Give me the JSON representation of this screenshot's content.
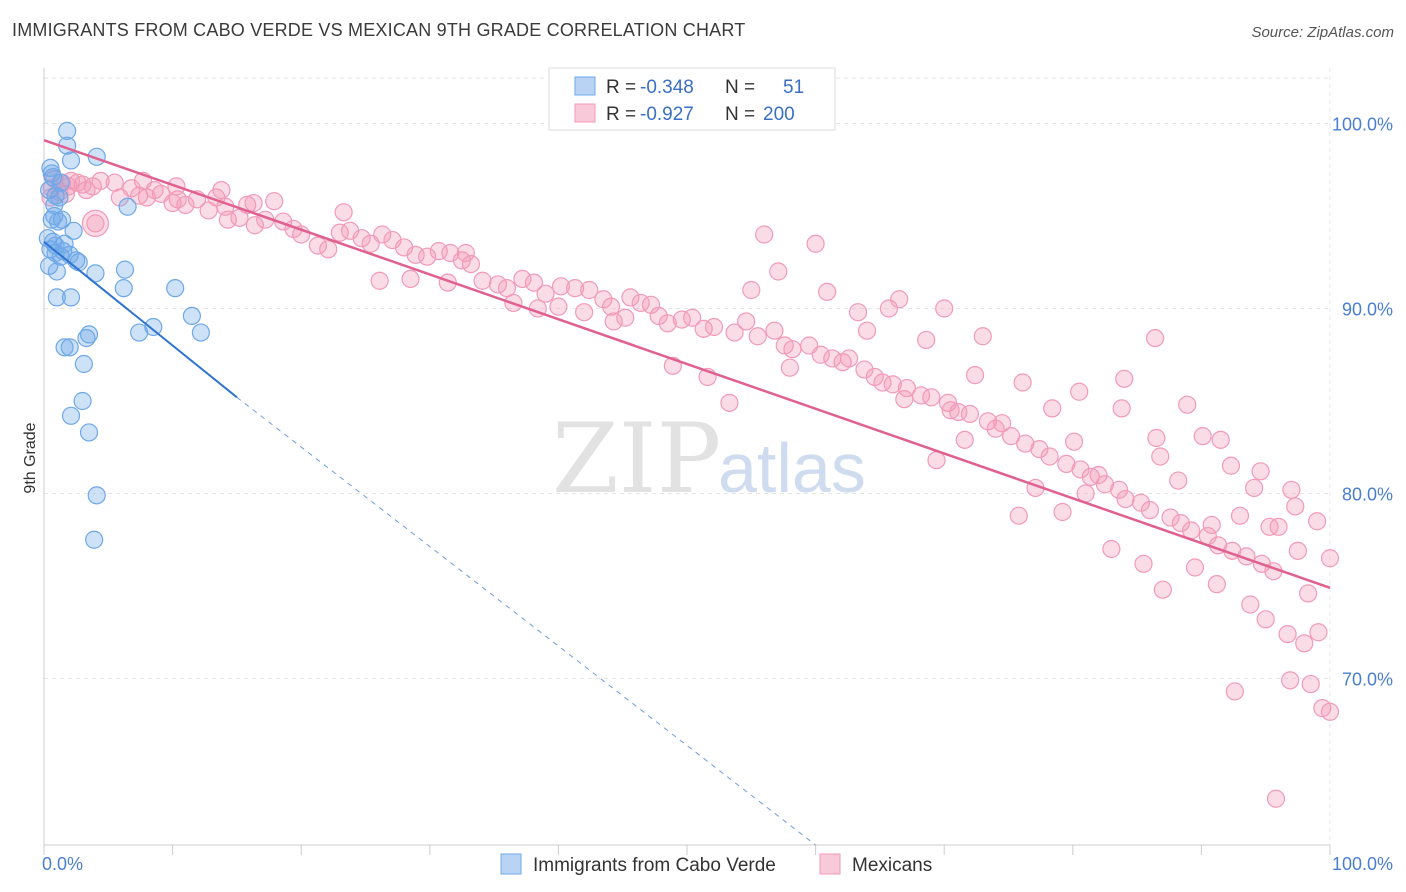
{
  "title": "IMMIGRANTS FROM CABO VERDE VS MEXICAN 9TH GRADE CORRELATION CHART",
  "source": "Source: ZipAtlas.com",
  "watermark": {
    "zip": "ZIP",
    "atlas": "atlas"
  },
  "colors": {
    "blue": "#6fa8e8",
    "blue_line": "#2f74d0",
    "pink": "#f29ab8",
    "pink_line": "#e0608f",
    "grid": "#e6e6e6"
  },
  "chart_data": {
    "type": "scatter",
    "title": "IMMIGRANTS FROM CABO VERDE VS MEXICAN 9TH GRADE CORRELATION CHART",
    "xlabel": "",
    "ylabel": "9th Grade",
    "xlim": [
      0,
      100
    ],
    "ylim": [
      61,
      103
    ],
    "x_tick_labels": [
      "0.0%",
      "100.0%"
    ],
    "y_ticks": [
      70,
      80,
      90,
      100
    ],
    "y_tick_labels": [
      "70.0%",
      "80.0%",
      "90.0%",
      "100.0%"
    ],
    "legend": {
      "entries": [
        {
          "name": "Immigrants from Cabo Verde",
          "r_label": "R =",
          "r": "-0.348",
          "n_label": "N =",
          "n": "51"
        },
        {
          "name": "Mexicans",
          "r_label": "R =",
          "r": "-0.927",
          "n_label": "N = ",
          "n": "200"
        }
      ]
    },
    "series": [
      {
        "name": "Immigrants from Cabo Verde",
        "color": "#6fa8e8",
        "trend": {
          "x0": 0,
          "y0": 93.6,
          "x1": 15,
          "y1": 85.2,
          "dash_to_x": 60,
          "dash_to_y": 61
        },
        "points": [
          [
            1.8,
            99.6
          ],
          [
            1.8,
            98.8
          ],
          [
            2.1,
            98.0
          ],
          [
            4.1,
            98.2
          ],
          [
            0.5,
            97.6
          ],
          [
            0.7,
            97.1
          ],
          [
            1.3,
            96.8
          ],
          [
            0.4,
            96.4
          ],
          [
            0.9,
            96.1
          ],
          [
            0.8,
            95.6
          ],
          [
            6.5,
            95.5
          ],
          [
            0.6,
            94.8
          ],
          [
            1.4,
            94.8
          ],
          [
            1.1,
            94.7
          ],
          [
            2.3,
            94.2
          ],
          [
            0.3,
            93.8
          ],
          [
            0.7,
            93.6
          ],
          [
            1.6,
            93.5
          ],
          [
            0.5,
            93.2
          ],
          [
            0.9,
            93.0
          ],
          [
            2.0,
            92.9
          ],
          [
            1.3,
            92.8
          ],
          [
            2.5,
            92.6
          ],
          [
            2.7,
            92.5
          ],
          [
            0.4,
            92.3
          ],
          [
            1.0,
            92.0
          ],
          [
            6.3,
            92.1
          ],
          [
            4.0,
            91.9
          ],
          [
            6.2,
            91.1
          ],
          [
            10.2,
            91.1
          ],
          [
            1.0,
            90.6
          ],
          [
            2.1,
            90.6
          ],
          [
            11.5,
            89.6
          ],
          [
            8.5,
            89.0
          ],
          [
            7.4,
            88.7
          ],
          [
            12.2,
            88.7
          ],
          [
            3.5,
            88.6
          ],
          [
            3.3,
            88.4
          ],
          [
            1.6,
            87.9
          ],
          [
            2.0,
            87.9
          ],
          [
            3.1,
            87.0
          ],
          [
            3.0,
            85.0
          ],
          [
            2.1,
            84.2
          ],
          [
            3.5,
            83.3
          ],
          [
            4.1,
            79.9
          ],
          [
            3.9,
            77.5
          ],
          [
            0.6,
            97.3
          ],
          [
            1.2,
            96.0
          ],
          [
            0.9,
            93.4
          ],
          [
            1.5,
            93.1
          ],
          [
            0.8,
            95.0
          ]
        ]
      },
      {
        "name": "Mexicans",
        "color": "#f29ab8",
        "trend": {
          "x0": 0,
          "y0": 99.1,
          "x1": 100,
          "y1": 74.9
        },
        "points": [
          [
            0.8,
            97.0
          ],
          [
            1.4,
            96.8
          ],
          [
            2.1,
            96.9
          ],
          [
            3.0,
            96.7
          ],
          [
            3.8,
            96.6
          ],
          [
            0.6,
            96.5
          ],
          [
            1.2,
            96.3
          ],
          [
            1.9,
            96.6
          ],
          [
            2.6,
            96.8
          ],
          [
            4.4,
            96.9
          ],
          [
            5.5,
            96.8
          ],
          [
            6.8,
            96.5
          ],
          [
            7.7,
            96.9
          ],
          [
            8.6,
            96.4
          ],
          [
            0.5,
            96.0
          ],
          [
            1.7,
            96.2
          ],
          [
            3.3,
            96.4
          ],
          [
            5.9,
            96.0
          ],
          [
            7.4,
            96.1
          ],
          [
            9.1,
            96.2
          ],
          [
            10.4,
            95.9
          ],
          [
            11.9,
            95.9
          ],
          [
            13.4,
            96.0
          ],
          [
            14.1,
            95.5
          ],
          [
            15.8,
            95.6
          ],
          [
            16.3,
            95.7
          ],
          [
            17.9,
            95.8
          ],
          [
            8.0,
            96.0
          ],
          [
            10.3,
            96.6
          ],
          [
            13.8,
            96.4
          ],
          [
            4.0,
            94.6
          ],
          [
            10.0,
            95.7
          ],
          [
            11.0,
            95.6
          ],
          [
            12.8,
            95.3
          ],
          [
            14.3,
            94.8
          ],
          [
            15.2,
            94.9
          ],
          [
            16.4,
            94.5
          ],
          [
            17.2,
            94.8
          ],
          [
            18.6,
            94.7
          ],
          [
            19.4,
            94.3
          ],
          [
            20.0,
            94.0
          ],
          [
            21.3,
            93.4
          ],
          [
            22.1,
            93.2
          ],
          [
            23.0,
            94.1
          ],
          [
            23.8,
            94.2
          ],
          [
            24.7,
            93.8
          ],
          [
            25.4,
            93.5
          ],
          [
            26.3,
            94.0
          ],
          [
            27.1,
            93.7
          ],
          [
            28.0,
            93.3
          ],
          [
            28.9,
            92.9
          ],
          [
            29.8,
            92.8
          ],
          [
            30.7,
            93.1
          ],
          [
            31.6,
            93.0
          ],
          [
            32.5,
            92.6
          ],
          [
            23.3,
            95.2
          ],
          [
            31.4,
            91.4
          ],
          [
            32.8,
            93.0
          ],
          [
            26.1,
            91.5
          ],
          [
            28.5,
            91.6
          ],
          [
            33.2,
            92.4
          ],
          [
            34.1,
            91.5
          ],
          [
            35.3,
            91.3
          ],
          [
            36.0,
            91.1
          ],
          [
            37.2,
            91.6
          ],
          [
            38.1,
            91.4
          ],
          [
            39.0,
            90.8
          ],
          [
            40.2,
            91.2
          ],
          [
            41.3,
            91.1
          ],
          [
            42.4,
            91.0
          ],
          [
            43.5,
            90.5
          ],
          [
            44.1,
            90.1
          ],
          [
            45.6,
            90.6
          ],
          [
            46.4,
            90.3
          ],
          [
            47.2,
            90.2
          ],
          [
            36.5,
            90.3
          ],
          [
            38.4,
            90.0
          ],
          [
            40.0,
            90.1
          ],
          [
            42.0,
            89.8
          ],
          [
            44.3,
            89.3
          ],
          [
            45.2,
            89.5
          ],
          [
            47.8,
            89.6
          ],
          [
            48.5,
            89.2
          ],
          [
            49.6,
            89.4
          ],
          [
            50.4,
            89.5
          ],
          [
            51.3,
            88.9
          ],
          [
            52.1,
            89.0
          ],
          [
            53.7,
            88.7
          ],
          [
            54.6,
            89.3
          ],
          [
            55.5,
            88.5
          ],
          [
            56.8,
            88.8
          ],
          [
            57.6,
            88.0
          ],
          [
            58.2,
            87.8
          ],
          [
            59.5,
            88.0
          ],
          [
            60.4,
            87.5
          ],
          [
            61.3,
            87.3
          ],
          [
            62.1,
            87.1
          ],
          [
            63.8,
            86.7
          ],
          [
            64.6,
            86.3
          ],
          [
            65.2,
            86.0
          ],
          [
            66.0,
            85.9
          ],
          [
            67.1,
            85.7
          ],
          [
            68.2,
            85.3
          ],
          [
            69.0,
            85.2
          ],
          [
            70.3,
            84.9
          ],
          [
            71.1,
            84.4
          ],
          [
            72.0,
            84.3
          ],
          [
            73.4,
            83.9
          ],
          [
            74.0,
            83.5
          ],
          [
            75.2,
            83.1
          ],
          [
            76.3,
            82.7
          ],
          [
            77.4,
            82.4
          ],
          [
            78.2,
            82.0
          ],
          [
            79.5,
            81.6
          ],
          [
            80.6,
            81.3
          ],
          [
            81.4,
            80.9
          ],
          [
            82.5,
            80.5
          ],
          [
            83.6,
            80.2
          ],
          [
            84.1,
            79.7
          ],
          [
            85.3,
            79.5
          ],
          [
            86.0,
            79.1
          ],
          [
            87.6,
            78.7
          ],
          [
            88.4,
            78.4
          ],
          [
            89.2,
            78.0
          ],
          [
            90.5,
            77.7
          ],
          [
            91.3,
            77.2
          ],
          [
            92.4,
            76.9
          ],
          [
            93.5,
            76.6
          ],
          [
            94.7,
            76.2
          ],
          [
            95.6,
            75.8
          ],
          [
            57.1,
            92.0
          ],
          [
            60.9,
            90.9
          ],
          [
            63.3,
            89.8
          ],
          [
            65.7,
            90.0
          ],
          [
            55.0,
            91.0
          ],
          [
            58.0,
            86.8
          ],
          [
            62.6,
            87.3
          ],
          [
            64.0,
            88.8
          ],
          [
            68.6,
            88.3
          ],
          [
            70.5,
            84.5
          ],
          [
            72.4,
            86.4
          ],
          [
            74.5,
            83.8
          ],
          [
            76.1,
            86.0
          ],
          [
            78.4,
            84.6
          ],
          [
            80.1,
            82.8
          ],
          [
            82.0,
            81.0
          ],
          [
            71.6,
            82.9
          ],
          [
            77.1,
            80.3
          ],
          [
            79.2,
            79.0
          ],
          [
            81.0,
            80.0
          ],
          [
            83.8,
            84.6
          ],
          [
            86.8,
            82.0
          ],
          [
            88.2,
            80.7
          ],
          [
            90.1,
            83.1
          ],
          [
            92.3,
            81.5
          ],
          [
            94.1,
            80.3
          ],
          [
            96.0,
            78.2
          ],
          [
            97.5,
            76.9
          ],
          [
            98.3,
            74.6
          ],
          [
            99.1,
            72.5
          ],
          [
            85.5,
            76.2
          ],
          [
            87.0,
            74.8
          ],
          [
            89.5,
            76.0
          ],
          [
            91.2,
            75.1
          ],
          [
            93.8,
            74.0
          ],
          [
            95.0,
            73.2
          ],
          [
            96.7,
            72.4
          ],
          [
            98.0,
            71.9
          ],
          [
            84.0,
            86.2
          ],
          [
            86.4,
            88.4
          ],
          [
            88.9,
            84.8
          ],
          [
            91.5,
            82.9
          ],
          [
            93.0,
            78.8
          ],
          [
            95.3,
            78.2
          ],
          [
            97.3,
            79.3
          ],
          [
            99.0,
            78.5
          ],
          [
            100.0,
            76.5
          ],
          [
            94.6,
            81.2
          ],
          [
            92.6,
            69.3
          ],
          [
            96.9,
            69.9
          ],
          [
            98.5,
            69.7
          ],
          [
            99.4,
            68.4
          ],
          [
            100.0,
            68.2
          ],
          [
            95.8,
            63.5
          ],
          [
            60.0,
            93.5
          ],
          [
            56.0,
            94.0
          ],
          [
            66.5,
            90.5
          ],
          [
            70.0,
            90.0
          ],
          [
            73.0,
            88.5
          ],
          [
            51.6,
            86.3
          ],
          [
            53.3,
            84.9
          ],
          [
            48.9,
            86.9
          ],
          [
            66.9,
            85.1
          ],
          [
            69.4,
            81.8
          ],
          [
            75.8,
            78.8
          ],
          [
            83.0,
            77.0
          ],
          [
            86.5,
            83.0
          ],
          [
            90.8,
            78.3
          ],
          [
            97.0,
            80.2
          ],
          [
            80.5,
            85.5
          ]
        ]
      }
    ]
  }
}
